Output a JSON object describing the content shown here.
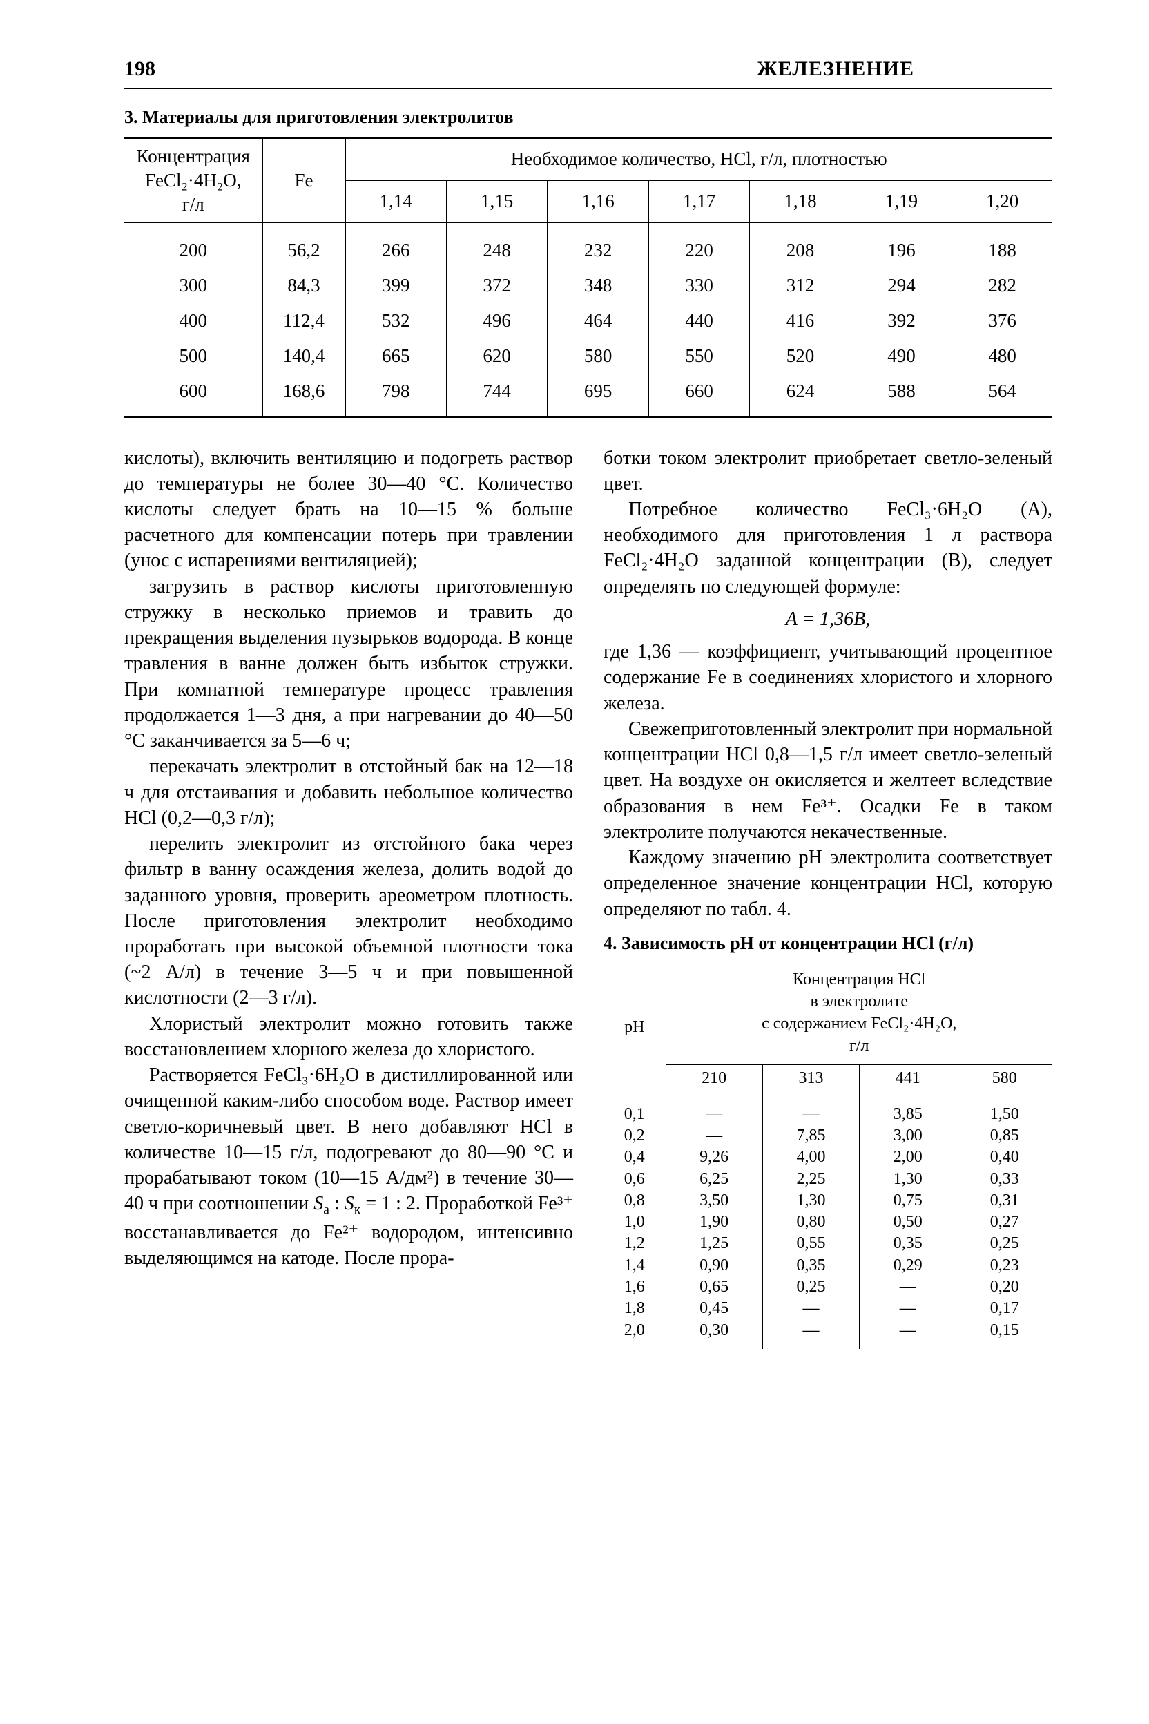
{
  "header": {
    "page": "198",
    "title": "ЖЕЛЕЗНЕНИЕ"
  },
  "table3": {
    "caption": "3. Материалы для приготовления электролитов",
    "col1_label_l1": "Концентрация",
    "col1_label_l2": "FeCl₂·4H₂O,",
    "col1_label_l3": "г/л",
    "col2_label": "Fe",
    "group_label": "Необходимое количество, HCl, г/л, плотностью",
    "densities": [
      "1,14",
      "1,15",
      "1,16",
      "1,17",
      "1,18",
      "1,19",
      "1,20"
    ],
    "rows": [
      {
        "c": "200",
        "fe": "56,2",
        "v": [
          "266",
          "248",
          "232",
          "220",
          "208",
          "196",
          "188"
        ]
      },
      {
        "c": "300",
        "fe": "84,3",
        "v": [
          "399",
          "372",
          "348",
          "330",
          "312",
          "294",
          "282"
        ]
      },
      {
        "c": "400",
        "fe": "112,4",
        "v": [
          "532",
          "496",
          "464",
          "440",
          "416",
          "392",
          "376"
        ]
      },
      {
        "c": "500",
        "fe": "140,4",
        "v": [
          "665",
          "620",
          "580",
          "550",
          "520",
          "490",
          "480"
        ]
      },
      {
        "c": "600",
        "fe": "168,6",
        "v": [
          "798",
          "744",
          "695",
          "660",
          "624",
          "588",
          "564"
        ]
      }
    ]
  },
  "left": {
    "p1": "кислоты), включить вентиляцию и подогреть раствор до температуры не более 30—40 °С. Количество кислоты следует брать на 10—15 % больше расчетного для компенсации потерь при травлении (унос с испарениями вентиляцией);",
    "p2": "загрузить в раствор кислоты приготовленную стружку в несколько приемов и травить до прекращения выделения пузырьков водорода. В конце травления в ванне должен быть избыток стружки. При комнатной температуре процесс травления продолжается 1—3 дня, а при нагревании до 40—50 °С заканчивается за 5—6 ч;",
    "p3": "перекачать электролит в отстойный бак на 12—18 ч для отстаивания и добавить небольшое количество HCl (0,2—0,3 г/л);",
    "p4": "перелить электролит из отстойного бака через фильтр в ванну осаждения железа, долить водой до заданного уровня, проверить ареометром плотность. После приготовления электролит необходимо проработать при высокой объемной плотности тока (~2 А/л) в течение 3—5 ч и при повышенной кислотности (2—3 г/л).",
    "p5": "Хлористый электролит можно готовить также восстановлением хлорного железа до хлористого.",
    "p6a": "Растворяется FeCl₃·6H₂O в дистиллированной или очищенной каким-либо способом воде. Раствор имеет светло-коричневый цвет. В него добавляют HCl в количестве 10—15 г/л, подогревают до 80—90 °С и прорабатывают током (10—15 А/дм²) в течение 30—40 ч при соотношении ",
    "p6sa": "S",
    "p6sub_a": "а",
    "p6colon": " : ",
    "p6sk": "S",
    "p6sub_k": "к",
    "p6eq": " = 1 : 2. Проработкой Fe³⁺ восстанавливается до Fe²⁺ водородом, интенсивно выделяющимся на катоде. После прора-"
  },
  "right": {
    "p1": "ботки током электролит приобретает светло-зеленый цвет.",
    "p2": "Потребное количество FeCl₃·6H₂O (A), необходимого для приготовления 1 л раствора FeCl₂·4H₂O заданной концентрации (B), следует определять по следующей формуле:",
    "formula": "A = 1,36B,",
    "p3": "где 1,36 — коэффициент, учитывающий процентное содержание Fe в соединениях хлористого и хлорного железа.",
    "p4": "Свежеприготовленный электролит при нормальной концентрации HCl 0,8—1,5 г/л имеет светло-зеленый цвет. На воздухе он окисляется и желтеет вследствие образования в нем Fe³⁺. Осадки Fe в таком электролите получаются некачественные.",
    "p5": "Каждому значению pH электролита соответствует определенное значение концентрации HCl, которую определяют по табл. 4."
  },
  "table4": {
    "caption": "4. Зависимость pH от концентрации HCl (г/л)",
    "ph_label": "pH",
    "group_l1": "Концентрация HCl",
    "group_l2": "в электролите",
    "group_l3": "с содержанием FeCl₂·4H₂O,",
    "group_l4": "г/л",
    "concs": [
      "210",
      "313",
      "441",
      "580"
    ],
    "rows": [
      {
        "ph": "0,1",
        "v": [
          "—",
          "—",
          "3,85",
          "1,50"
        ]
      },
      {
        "ph": "0,2",
        "v": [
          "—",
          "7,85",
          "3,00",
          "0,85"
        ]
      },
      {
        "ph": "0,4",
        "v": [
          "9,26",
          "4,00",
          "2,00",
          "0,40"
        ]
      },
      {
        "ph": "0,6",
        "v": [
          "6,25",
          "2,25",
          "1,30",
          "0,33"
        ]
      },
      {
        "ph": "0,8",
        "v": [
          "3,50",
          "1,30",
          "0,75",
          "0,31"
        ]
      },
      {
        "ph": "1,0",
        "v": [
          "1,90",
          "0,80",
          "0,50",
          "0,27"
        ]
      },
      {
        "ph": "1,2",
        "v": [
          "1,25",
          "0,55",
          "0,35",
          "0,25"
        ]
      },
      {
        "ph": "1,4",
        "v": [
          "0,90",
          "0,35",
          "0,29",
          "0,23"
        ]
      },
      {
        "ph": "1,6",
        "v": [
          "0,65",
          "0,25",
          "—",
          "0,20"
        ]
      },
      {
        "ph": "1,8",
        "v": [
          "0,45",
          "—",
          "—",
          "0,17"
        ]
      },
      {
        "ph": "2,0",
        "v": [
          "0,30",
          "—",
          "—",
          "0,15"
        ]
      }
    ]
  }
}
